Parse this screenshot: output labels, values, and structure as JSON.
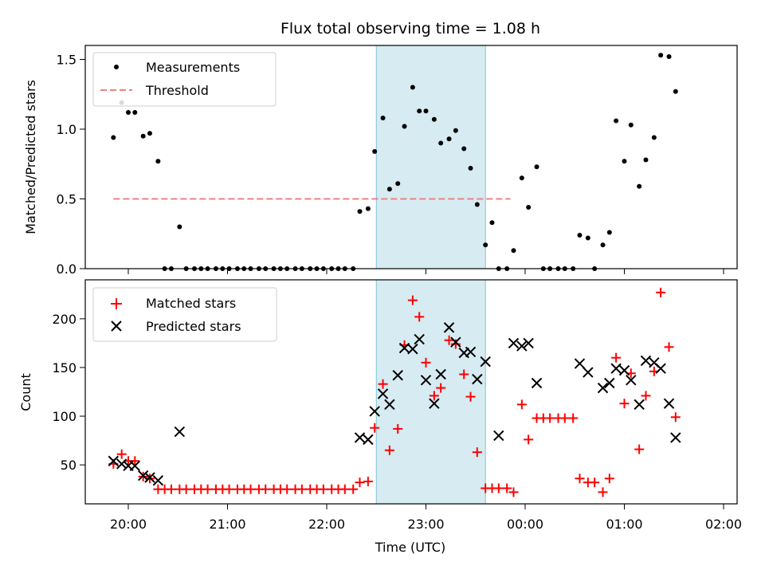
{
  "chart_data": [
    {
      "type": "scatter",
      "title": "Flux total observing time = 1.08 h",
      "xlabel": "",
      "ylabel": "Matched/Predicted stars",
      "ylim": [
        0,
        1.6
      ],
      "yticks": [
        "0.0",
        "0.5",
        "1.0",
        "1.5"
      ],
      "shaded_interval": [
        "22:30",
        "23:36"
      ],
      "legend": {
        "position": "upper-left",
        "entries": [
          "Measurements",
          "Threshold"
        ]
      },
      "threshold": {
        "name": "Threshold",
        "value": 0.5,
        "x_range": [
          "19:51",
          "23:51"
        ],
        "color": "#f08080",
        "style": "dashed"
      },
      "series": [
        {
          "name": "Measurements",
          "color": "#000000",
          "marker": "dot",
          "points": [
            [
              "19:51",
              0.94
            ],
            [
              "19:56",
              1.19
            ],
            [
              "20:00",
              1.12
            ],
            [
              "20:04",
              1.12
            ],
            [
              "20:09",
              0.95
            ],
            [
              "20:13",
              0.97
            ],
            [
              "20:18",
              0.77
            ],
            [
              "20:22",
              0.0
            ],
            [
              "20:26",
              0.0
            ],
            [
              "20:31",
              0.3
            ],
            [
              "20:35",
              0.0
            ],
            [
              "20:40",
              0.0
            ],
            [
              "20:44",
              0.0
            ],
            [
              "20:48",
              0.0
            ],
            [
              "20:53",
              0.0
            ],
            [
              "20:57",
              0.0
            ],
            [
              "21:01",
              0.0
            ],
            [
              "21:06",
              0.0
            ],
            [
              "21:10",
              0.0
            ],
            [
              "21:14",
              0.0
            ],
            [
              "21:19",
              0.0
            ],
            [
              "21:23",
              0.0
            ],
            [
              "21:28",
              0.0
            ],
            [
              "21:32",
              0.0
            ],
            [
              "21:36",
              0.0
            ],
            [
              "21:41",
              0.0
            ],
            [
              "21:45",
              0.0
            ],
            [
              "21:50",
              0.0
            ],
            [
              "21:54",
              0.0
            ],
            [
              "21:58",
              0.0
            ],
            [
              "22:03",
              0.0
            ],
            [
              "22:07",
              0.0
            ],
            [
              "22:11",
              0.0
            ],
            [
              "22:16",
              0.0
            ],
            [
              "22:20",
              0.41
            ],
            [
              "22:25",
              0.43
            ],
            [
              "22:29",
              0.84
            ],
            [
              "22:34",
              1.08
            ],
            [
              "22:38",
              0.57
            ],
            [
              "22:43",
              0.61
            ],
            [
              "22:47",
              1.02
            ],
            [
              "22:52",
              1.3
            ],
            [
              "22:56",
              1.13
            ],
            [
              "23:00",
              1.13
            ],
            [
              "23:05",
              1.07
            ],
            [
              "23:09",
              0.9
            ],
            [
              "23:14",
              0.93
            ],
            [
              "23:18",
              0.99
            ],
            [
              "23:23",
              0.86
            ],
            [
              "23:27",
              0.72
            ],
            [
              "23:31",
              0.46
            ],
            [
              "23:36",
              0.17
            ],
            [
              "23:40",
              0.33
            ],
            [
              "23:44",
              0.0
            ],
            [
              "23:49",
              0.0
            ],
            [
              "23:53",
              0.13
            ],
            [
              "23:58",
              0.65
            ],
            [
              "00:02",
              0.44
            ],
            [
              "00:07",
              0.73
            ],
            [
              "00:11",
              0.0
            ],
            [
              "00:15",
              0.0
            ],
            [
              "00:20",
              0.0
            ],
            [
              "00:24",
              0.0
            ],
            [
              "00:29",
              0.0
            ],
            [
              "00:33",
              0.24
            ],
            [
              "00:38",
              0.22
            ],
            [
              "00:42",
              0.0
            ],
            [
              "00:47",
              0.17
            ],
            [
              "00:51",
              0.26
            ],
            [
              "00:55",
              1.06
            ],
            [
              "01:00",
              0.77
            ],
            [
              "01:04",
              1.03
            ],
            [
              "01:09",
              0.59
            ],
            [
              "01:13",
              0.78
            ],
            [
              "01:18",
              0.94
            ],
            [
              "01:22",
              1.53
            ],
            [
              "01:27",
              1.52
            ],
            [
              "01:31",
              1.27
            ]
          ]
        }
      ]
    },
    {
      "type": "scatter",
      "title": "",
      "xlabel": "Time (UTC)",
      "ylabel": "Count",
      "ylim": [
        10,
        240
      ],
      "yticks": [
        "50",
        "100",
        "150",
        "200"
      ],
      "xticks": [
        "20:00",
        "21:00",
        "22:00",
        "23:00",
        "00:00",
        "01:00",
        "02:00"
      ],
      "shaded_interval": [
        "22:30",
        "23:36"
      ],
      "legend": {
        "position": "upper-left",
        "entries": [
          "Matched stars",
          "Predicted stars"
        ]
      },
      "series": [
        {
          "name": "Matched stars",
          "color": "#ff0000",
          "marker": "plus",
          "points": [
            [
              "19:51",
              51
            ],
            [
              "19:56",
              61
            ],
            [
              "20:00",
              54
            ],
            [
              "20:04",
              54
            ],
            [
              "20:09",
              38
            ],
            [
              "20:13",
              36
            ],
            [
              "20:18",
              25
            ],
            [
              "20:22",
              25
            ],
            [
              "20:26",
              25
            ],
            [
              "20:31",
              25
            ],
            [
              "20:35",
              25
            ],
            [
              "20:40",
              25
            ],
            [
              "20:44",
              25
            ],
            [
              "20:48",
              25
            ],
            [
              "20:53",
              25
            ],
            [
              "20:57",
              25
            ],
            [
              "21:01",
              25
            ],
            [
              "21:06",
              25
            ],
            [
              "21:10",
              25
            ],
            [
              "21:14",
              25
            ],
            [
              "21:19",
              25
            ],
            [
              "21:23",
              25
            ],
            [
              "21:28",
              25
            ],
            [
              "21:32",
              25
            ],
            [
              "21:36",
              25
            ],
            [
              "21:41",
              25
            ],
            [
              "21:45",
              25
            ],
            [
              "21:50",
              25
            ],
            [
              "21:54",
              25
            ],
            [
              "21:58",
              25
            ],
            [
              "22:03",
              25
            ],
            [
              "22:07",
              25
            ],
            [
              "22:11",
              25
            ],
            [
              "22:16",
              25
            ],
            [
              "22:20",
              32
            ],
            [
              "22:25",
              33
            ],
            [
              "22:29",
              88
            ],
            [
              "22:34",
              133
            ],
            [
              "22:38",
              65
            ],
            [
              "22:43",
              87
            ],
            [
              "22:47",
              173
            ],
            [
              "22:52",
              219
            ],
            [
              "22:56",
              202
            ],
            [
              "23:00",
              155
            ],
            [
              "23:05",
              121
            ],
            [
              "23:09",
              129
            ],
            [
              "23:14",
              178
            ],
            [
              "23:18",
              174
            ],
            [
              "23:23",
              143
            ],
            [
              "23:27",
              120
            ],
            [
              "23:31",
              63
            ],
            [
              "23:36",
              26
            ],
            [
              "23:40",
              26
            ],
            [
              "23:44",
              26
            ],
            [
              "23:49",
              26
            ],
            [
              "23:53",
              22
            ],
            [
              "23:58",
              112
            ],
            [
              "00:02",
              76
            ],
            [
              "00:07",
              98
            ],
            [
              "00:11",
              98
            ],
            [
              "00:15",
              98
            ],
            [
              "00:20",
              98
            ],
            [
              "00:24",
              98
            ],
            [
              "00:29",
              98
            ],
            [
              "00:33",
              36
            ],
            [
              "00:38",
              32
            ],
            [
              "00:42",
              32
            ],
            [
              "00:47",
              22
            ],
            [
              "00:51",
              36
            ],
            [
              "00:55",
              160
            ],
            [
              "01:00",
              113
            ],
            [
              "01:04",
              144
            ],
            [
              "01:09",
              66
            ],
            [
              "01:13",
              121
            ],
            [
              "01:18",
              146
            ],
            [
              "01:22",
              227
            ],
            [
              "01:27",
              171
            ],
            [
              "01:31",
              99
            ]
          ]
        },
        {
          "name": "Predicted stars",
          "color": "#000000",
          "marker": "x",
          "points": [
            [
              "19:51",
              54
            ],
            [
              "19:56",
              51
            ],
            [
              "20:00",
              49
            ],
            [
              "20:04",
              49
            ],
            [
              "20:09",
              39
            ],
            [
              "20:13",
              37
            ],
            [
              "20:18",
              34
            ],
            [
              "20:31",
              84
            ],
            [
              "22:20",
              78
            ],
            [
              "22:25",
              76
            ],
            [
              "22:29",
              105
            ],
            [
              "22:34",
              123
            ],
            [
              "22:38",
              112
            ],
            [
              "22:43",
              142
            ],
            [
              "22:47",
              170
            ],
            [
              "22:52",
              169
            ],
            [
              "22:56",
              179
            ],
            [
              "23:00",
              137
            ],
            [
              "23:05",
              113
            ],
            [
              "23:09",
              143
            ],
            [
              "23:14",
              191
            ],
            [
              "23:18",
              176
            ],
            [
              "23:23",
              165
            ],
            [
              "23:27",
              166
            ],
            [
              "23:31",
              138
            ],
            [
              "23:36",
              156
            ],
            [
              "23:44",
              80
            ],
            [
              "23:53",
              175
            ],
            [
              "23:58",
              172
            ],
            [
              "00:02",
              175
            ],
            [
              "00:07",
              134
            ],
            [
              "00:33",
              154
            ],
            [
              "00:38",
              145
            ],
            [
              "00:47",
              129
            ],
            [
              "00:51",
              134
            ],
            [
              "00:55",
              149
            ],
            [
              "01:00",
              147
            ],
            [
              "01:04",
              137
            ],
            [
              "01:09",
              112
            ],
            [
              "01:13",
              157
            ],
            [
              "01:18",
              155
            ],
            [
              "01:22",
              149
            ],
            [
              "01:27",
              113
            ],
            [
              "01:31",
              78
            ]
          ]
        }
      ]
    }
  ]
}
